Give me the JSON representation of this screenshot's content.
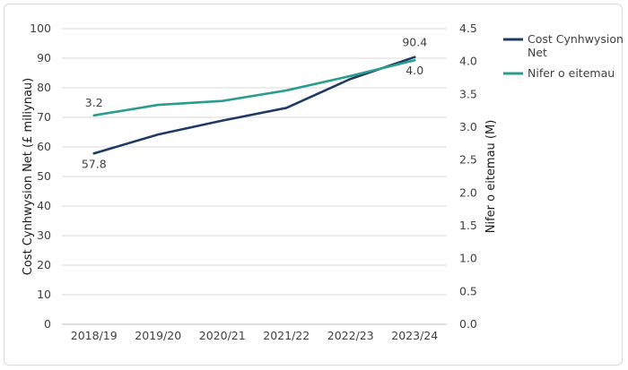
{
  "chart_data": {
    "type": "line",
    "categories": [
      "2018/19",
      "2019/20",
      "2020/21",
      "2021/22",
      "2022/23",
      "2023/24"
    ],
    "y_left": {
      "label": "Cost Cynhwysion Net  (£ miliynau)",
      "min": 0,
      "max": 100,
      "step": 10,
      "ticks": [
        "0",
        "10",
        "20",
        "30",
        "40",
        "50",
        "60",
        "70",
        "80",
        "90",
        "100"
      ]
    },
    "y_right": {
      "label": "Nifer o eitemau (M)",
      "min": 0,
      "max": 4.5,
      "step": 0.5,
      "ticks": [
        "0.0",
        "0.5",
        "1.0",
        "1.5",
        "2.0",
        "2.5",
        "3.0",
        "3.5",
        "4.0",
        "4.5"
      ]
    },
    "series": [
      {
        "name": "Cost Cynhwysion Net",
        "axis": "left",
        "color": "#1f3b64",
        "values": [
          57.8,
          64.2,
          68.9,
          73.2,
          83.0,
          90.4
        ],
        "labels": [
          {
            "index": 0,
            "text": "57.8"
          },
          {
            "index": 5,
            "text": "90.4"
          }
        ]
      },
      {
        "name": "Nifer o eitemau",
        "axis": "right",
        "color": "#2a9d8f",
        "values": [
          3.18,
          3.34,
          3.4,
          3.56,
          3.78,
          4.02
        ],
        "labels": [
          {
            "index": 0,
            "text": "3.2"
          },
          {
            "index": 5,
            "text": "4.0"
          }
        ]
      }
    ],
    "legend": {
      "position": "right",
      "entries": [
        "Cost Cynhwysion Net",
        "Nifer o eitemau"
      ]
    },
    "grid": true
  }
}
